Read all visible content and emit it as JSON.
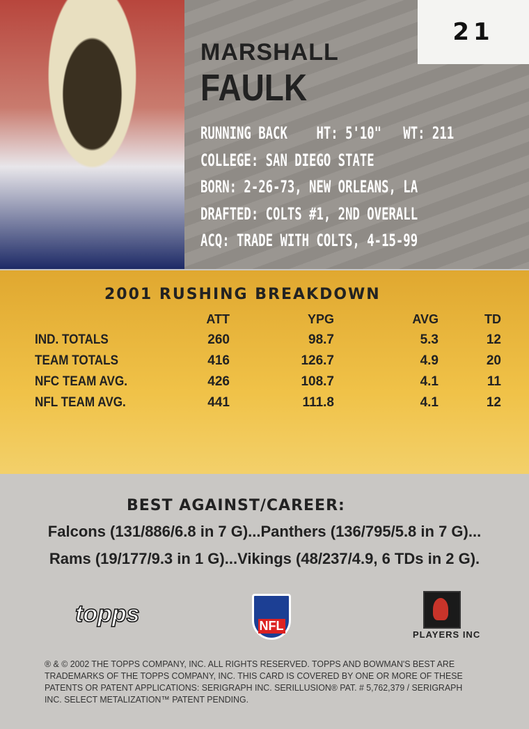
{
  "card": {
    "number": "21",
    "first_name": "MARSHALL",
    "last_name": "FAULK"
  },
  "bio": [
    "RUNNING BACK    HT: 5'10\"   WT: 211",
    "COLLEGE: SAN DIEGO STATE",
    "BORN: 2-26-73, NEW ORLEANS, LA",
    "DRAFTED: COLTS #1, 2ND OVERALL",
    "ACQ: TRADE WITH COLTS, 4-15-99"
  ],
  "stats": {
    "title": "2001 RUSHING BREAKDOWN",
    "headers": [
      "",
      "ATT",
      "YPG",
      "AVG",
      "TD"
    ],
    "rows": [
      [
        "IND. TOTALS",
        "260",
        "98.7",
        "5.3",
        "12"
      ],
      [
        "TEAM TOTALS",
        "416",
        "126.7",
        "4.9",
        "20"
      ],
      [
        "NFC TEAM AVG.",
        "426",
        "108.7",
        "4.1",
        "11"
      ],
      [
        "NFL TEAM AVG.",
        "441",
        "111.8",
        "4.1",
        "12"
      ]
    ]
  },
  "best": {
    "title": "BEST AGAINST/CAREER:",
    "line1": "Falcons (131/886/6.8 in 7 G)...Panthers (136/795/5.8 in 7 G)...",
    "line2": "Rams (19/177/9.3 in 1 G)...Vikings (48/237/4.9, 6 TDs in 2 G)."
  },
  "logos": {
    "topps": "topps",
    "nfl": "NFL",
    "players": "PLAYERS INC"
  },
  "legal": "® & © 2002 THE TOPPS COMPANY, INC. ALL RIGHTS RESERVED. TOPPS AND BOWMAN'S BEST ARE TRADEMARKS OF THE TOPPS COMPANY, INC. THIS CARD IS COVERED BY ONE OR MORE OF THESE PATENTS OR PATENT APPLICATIONS: SERIGRAPH INC. SERILLUSION® PAT. # 5,762,379 / SERIGRAPH INC. SELECT METALIZATION™ PATENT PENDING.",
  "colors": {
    "band": "#f0c248",
    "bio_panel": "#918d88",
    "background": "#c9c7c4"
  }
}
